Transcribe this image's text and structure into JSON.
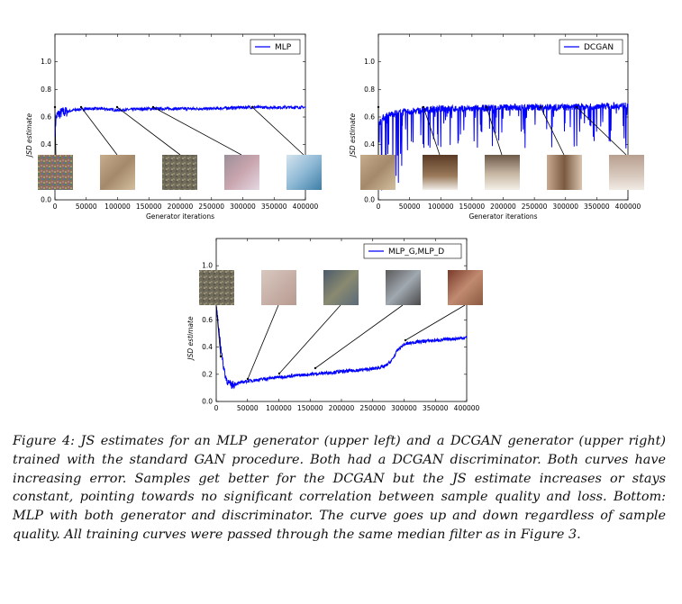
{
  "figure": {
    "caption": "Figure 4: JS estimates for an MLP generator (upper left) and a DCGAN generator (upper right) trained with the standard GAN procedure. Both had a DCGAN discriminator. Both curves have increasing error. Samples get better for the DCGAN but the JS estimate increases or stays constant, pointing towards no significant correlation between sample quality and loss. Bottom: MLP with both generator and discriminator. The curve goes up and down regardless of sample quality. All training curves were passed through the same median filter as in Figure 3."
  },
  "chart_data": [
    {
      "type": "line",
      "id": "mlp",
      "xlabel": "Generator iterations",
      "ylabel": "JSD estimate",
      "xlim": [
        0,
        400000
      ],
      "ylim": [
        0.0,
        1.2
      ],
      "xticks": [
        "0",
        "50000",
        "100000",
        "150000",
        "200000",
        "250000",
        "300000",
        "350000",
        "400000"
      ],
      "yticks": [
        "0.0",
        "0.2",
        "0.4",
        "0.6",
        "0.8",
        "1.0"
      ],
      "legend": "top-right",
      "series": [
        {
          "name": "MLP",
          "color": "#0000ff",
          "x": [
            0,
            2000,
            5000,
            10000,
            20000,
            30000,
            50000,
            75000,
            100000,
            150000,
            200000,
            250000,
            300000,
            350000,
            400000
          ],
          "y": [
            0.5,
            0.6,
            0.62,
            0.63,
            0.64,
            0.65,
            0.66,
            0.66,
            0.65,
            0.66,
            0.66,
            0.66,
            0.67,
            0.67,
            0.67
          ]
        }
      ]
    },
    {
      "type": "line",
      "id": "dcgan",
      "xlabel": "Generator iterations",
      "ylabel": "JSD estimate",
      "xlim": [
        0,
        400000
      ],
      "ylim": [
        0.0,
        1.2
      ],
      "xticks": [
        "0",
        "50000",
        "100000",
        "150000",
        "200000",
        "250000",
        "300000",
        "350000",
        "400000"
      ],
      "yticks": [
        "0.0",
        "0.2",
        "0.4",
        "0.6",
        "0.8",
        "1.0"
      ],
      "legend": "top-right",
      "series": [
        {
          "name": "DCGAN",
          "color": "#0000ff",
          "x": [
            0,
            5000,
            10000,
            20000,
            30000,
            50000,
            75000,
            100000,
            150000,
            200000,
            250000,
            300000,
            350000,
            400000
          ],
          "y": [
            0.55,
            0.58,
            0.6,
            0.62,
            0.63,
            0.64,
            0.65,
            0.66,
            0.66,
            0.67,
            0.67,
            0.67,
            0.68,
            0.68
          ]
        }
      ]
    },
    {
      "type": "line",
      "id": "mlp_g_mlp_d",
      "xlabel": "",
      "ylabel": "JSD estimate",
      "xlim": [
        0,
        400000
      ],
      "ylim": [
        0.0,
        1.2
      ],
      "xticks": [
        "0",
        "50000",
        "100000",
        "150000",
        "200000",
        "250000",
        "300000",
        "350000",
        "400000"
      ],
      "yticks": [
        "0.0",
        "0.2",
        "0.4",
        "0.6",
        "0.8",
        "1.0"
      ],
      "legend": "top-right",
      "series": [
        {
          "name": "MLP_G,MLP_D",
          "color": "#0000ff",
          "x": [
            0,
            5000,
            10000,
            15000,
            20000,
            25000,
            30000,
            50000,
            100000,
            150000,
            200000,
            250000,
            270000,
            280000,
            290000,
            300000,
            320000,
            350000,
            400000
          ],
          "y": [
            0.7,
            0.5,
            0.3,
            0.18,
            0.13,
            0.12,
            0.13,
            0.15,
            0.18,
            0.2,
            0.22,
            0.24,
            0.26,
            0.3,
            0.38,
            0.42,
            0.44,
            0.45,
            0.47
          ]
        }
      ]
    }
  ]
}
